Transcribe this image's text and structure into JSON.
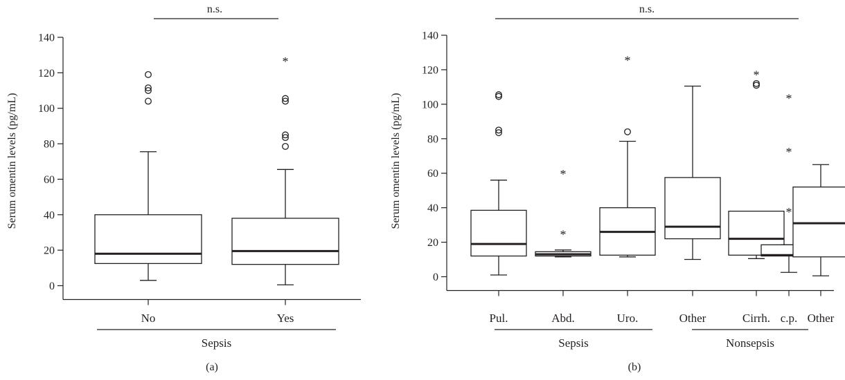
{
  "chart_data": [
    {
      "type": "box",
      "panel_label": "(a)",
      "significance_label": "n.s.",
      "ylabel": "Serum omentin levels (pg/mL)",
      "ylim": [
        0,
        140
      ],
      "yticks": [
        0,
        20,
        40,
        60,
        80,
        100,
        120,
        140
      ],
      "categories": [
        "No",
        "Yes"
      ],
      "group_labels": [
        {
          "label": "Sepsis",
          "categories": [
            "No",
            "Yes"
          ]
        }
      ],
      "boxes": [
        {
          "category": "No",
          "whisker_low": 3,
          "q1": 12.5,
          "median": 18,
          "q3": 40,
          "whisker_high": 75.5,
          "outliers_circle": [
            104,
            110,
            111.5,
            119
          ],
          "outliers_star": []
        },
        {
          "category": "Yes",
          "whisker_low": 0.5,
          "q1": 12,
          "median": 19.5,
          "q3": 38,
          "whisker_high": 65.5,
          "outliers_circle": [
            78.5,
            83.5,
            85,
            104,
            105.5
          ],
          "outliers_star": [
            128
          ]
        }
      ]
    },
    {
      "type": "box",
      "panel_label": "(b)",
      "significance_label": "n.s.",
      "ylabel": "Serum omentin levels (pg/mL)",
      "ylim": [
        0,
        140
      ],
      "yticks": [
        0,
        20,
        40,
        60,
        80,
        100,
        120,
        140
      ],
      "categories": [
        "Pul.",
        "Abd.",
        "Uro.",
        "Other",
        "Cirrh.",
        "c.p.",
        "Other"
      ],
      "group_labels": [
        {
          "label": "Sepsis",
          "categories": [
            "Pul.",
            "Abd.",
            "Uro.",
            "Other"
          ]
        },
        {
          "label": "Nonsepsis",
          "categories": [
            "Cirrh.",
            "c.p.",
            "Other"
          ]
        }
      ],
      "boxes": [
        {
          "category": "Pul.",
          "whisker_low": 1,
          "q1": 12,
          "median": 19,
          "q3": 38.5,
          "whisker_high": 56,
          "outliers_circle": [
            83.5,
            85,
            104.5,
            105.5
          ],
          "outliers_star": []
        },
        {
          "category": "Abd.",
          "whisker_low": 11.5,
          "q1": 12,
          "median": 13,
          "q3": 14.5,
          "whisker_high": 15.5,
          "outliers_circle": [],
          "outliers_star": [
            26,
            61
          ]
        },
        {
          "category": "Uro.",
          "whisker_low": 11.5,
          "q1": 12.5,
          "median": 26,
          "q3": 40,
          "whisker_high": 78.5,
          "outliers_circle": [
            84
          ],
          "outliers_star": [
            127
          ]
        },
        {
          "category": "Other",
          "whisker_low": 10,
          "q1": 22,
          "median": 29,
          "q3": 57.5,
          "whisker_high": 110.5,
          "outliers_circle": [],
          "outliers_star": []
        },
        {
          "category": "Cirrh.",
          "whisker_low": 10.5,
          "q1": 12.5,
          "median": 22,
          "q3": 38,
          "whisker_high": 38,
          "outliers_circle": [
            111,
            112
          ],
          "outliers_star": [
            118.5
          ]
        },
        {
          "category": "c.p.",
          "whisker_low": 2.5,
          "q1": 12,
          "median": 12.5,
          "q3": 18.5,
          "whisker_high": 18.5,
          "outliers_circle": [],
          "outliers_star": [
            39,
            74,
            105
          ]
        },
        {
          "category": "Other",
          "whisker_low": 0.5,
          "q1": 11.5,
          "median": 31,
          "q3": 52,
          "whisker_high": 65,
          "outliers_circle": [],
          "outliers_star": []
        }
      ]
    }
  ]
}
